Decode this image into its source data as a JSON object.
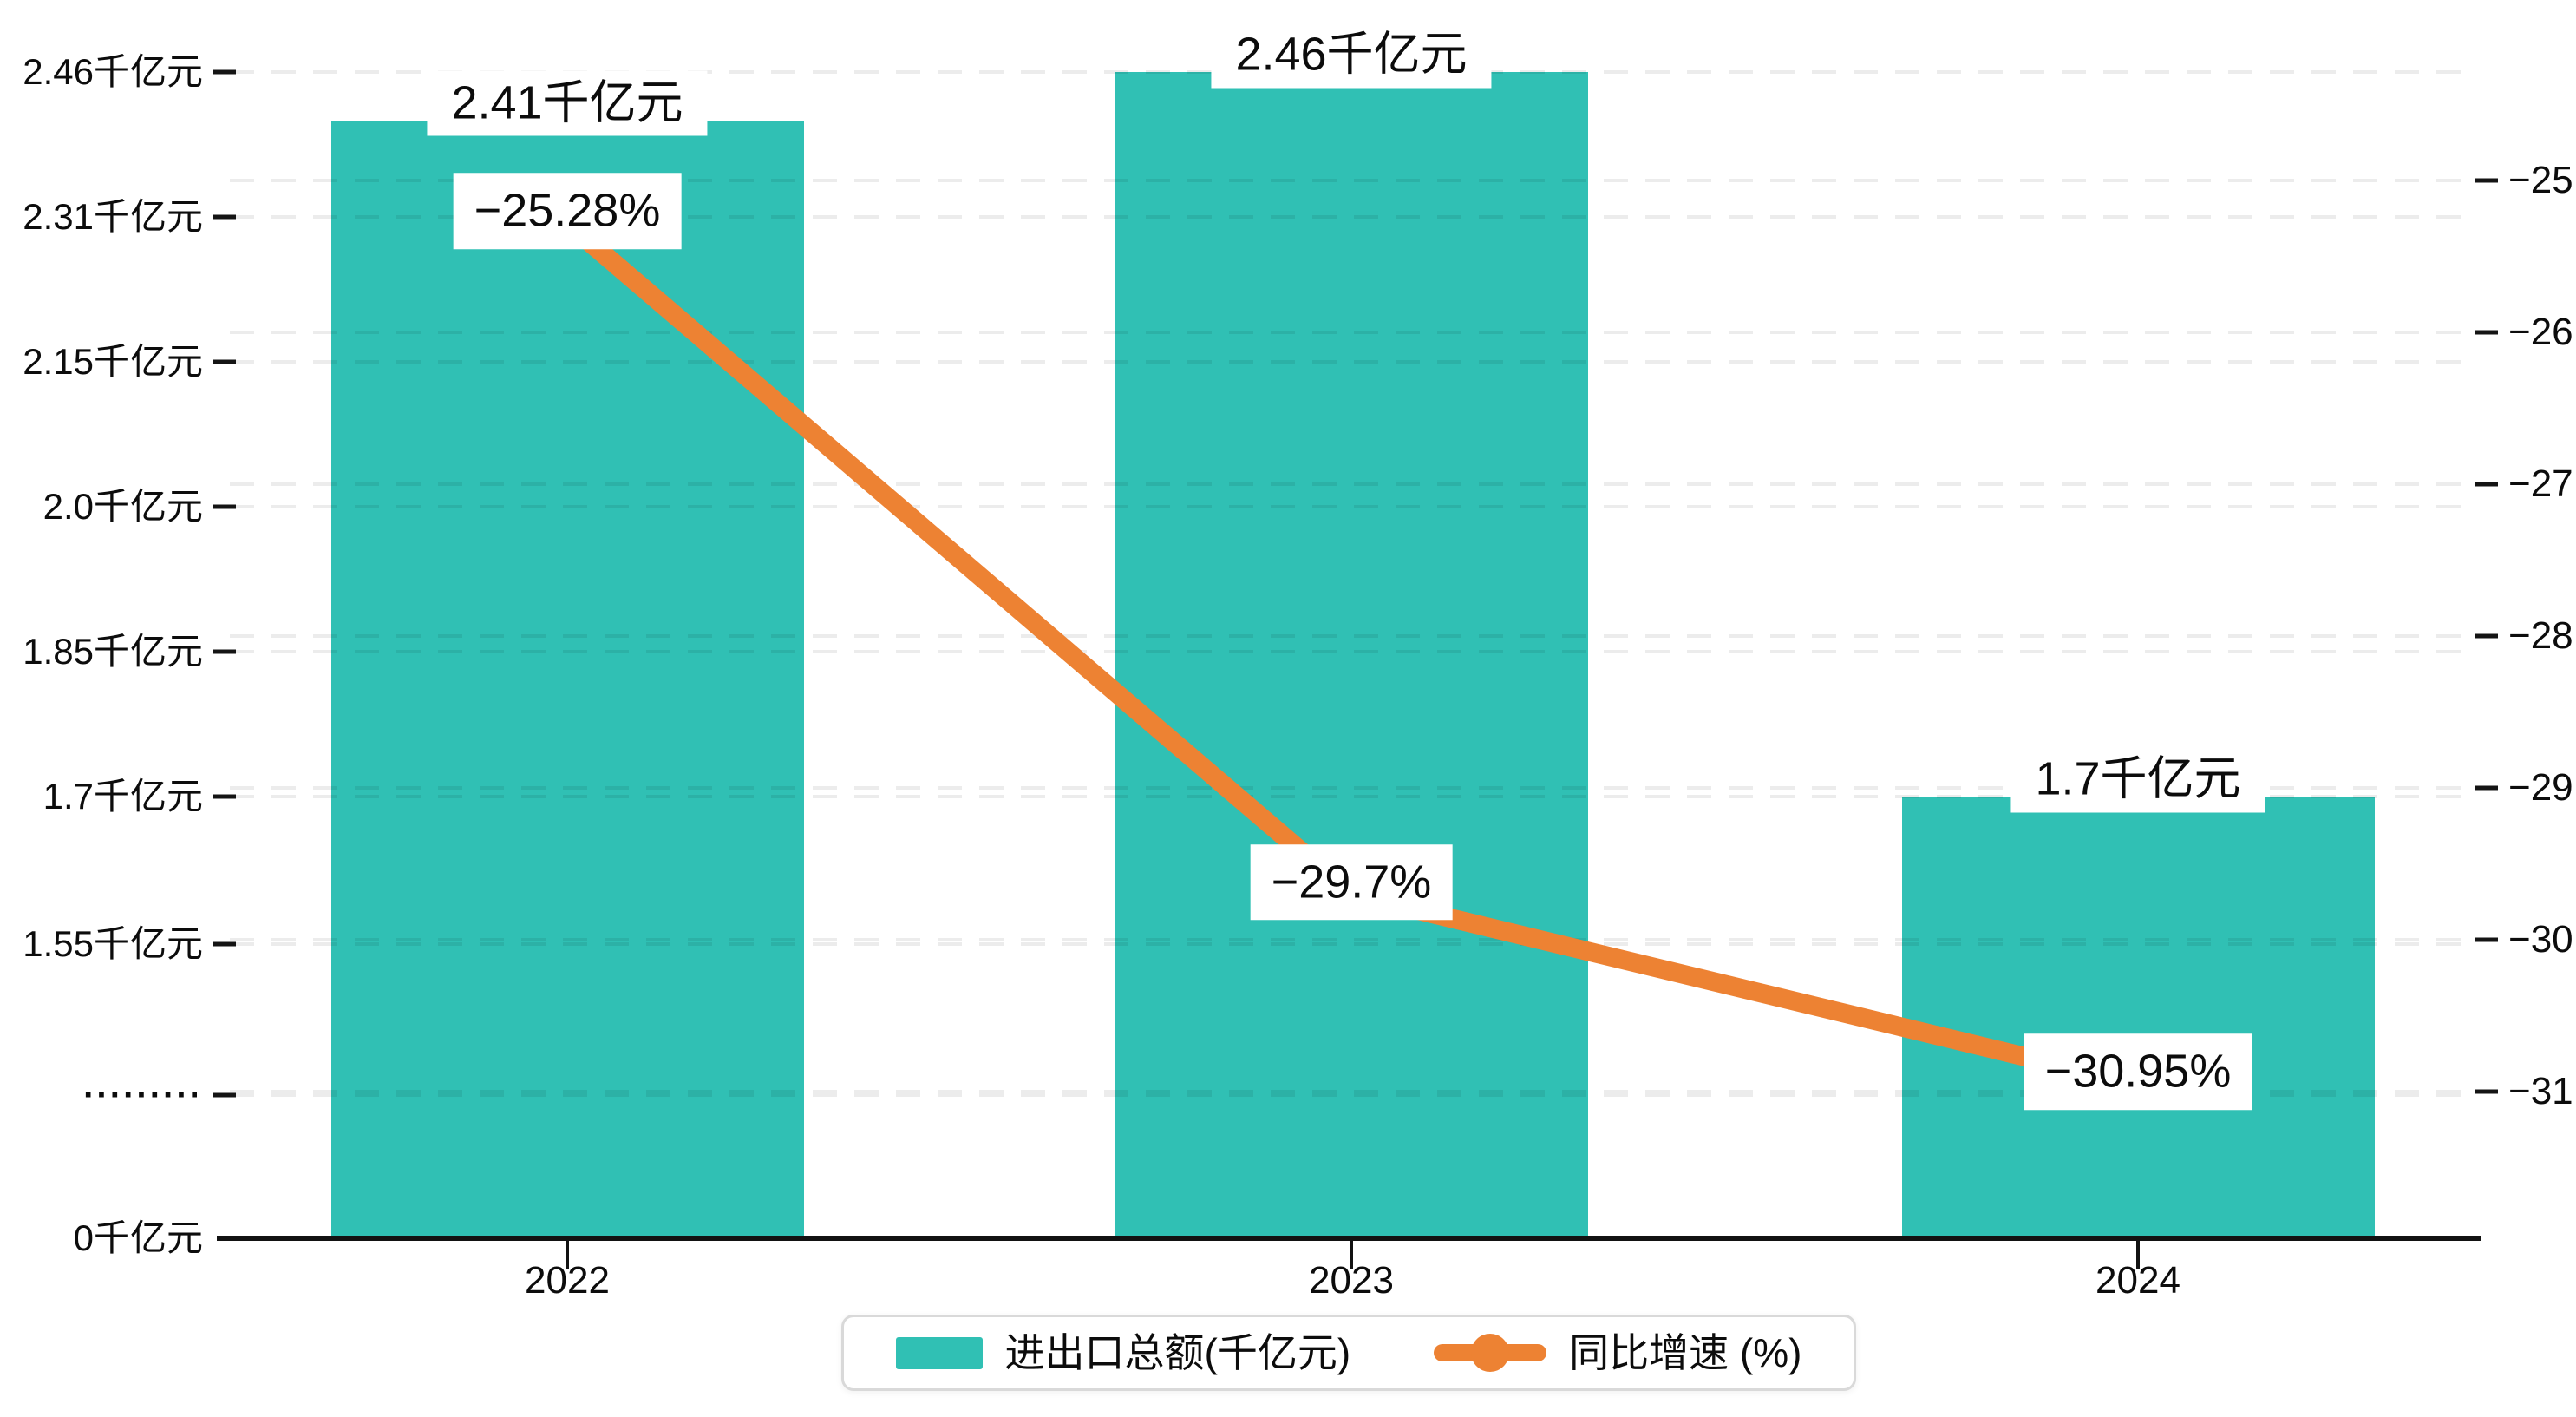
{
  "chart_data": {
    "type": "bar+line",
    "title": "",
    "categories": [
      "2022",
      "2023",
      "2024"
    ],
    "series": [
      {
        "name": "进出口总额(千亿元)",
        "type": "bar",
        "unit": "千亿元",
        "values": [
          2.41,
          2.46,
          1.7
        ],
        "data_labels": [
          "2.41千亿元",
          "2.46千亿元",
          "1.7千亿元"
        ],
        "color": "#30C0B4"
      },
      {
        "name": "同比增速 (%)",
        "type": "line",
        "unit": "%",
        "values": [
          -25.28,
          -29.7,
          -30.95
        ],
        "data_labels": [
          "−25.28%",
          "−29.7%",
          "−30.95%"
        ],
        "color": "#ED8233"
      }
    ],
    "left_axis": {
      "ticks": [
        "2.46千亿元",
        "2.31千亿元",
        "2.15千亿元",
        "2.0千亿元",
        "1.85千亿元",
        "1.7千亿元",
        "1.55千亿元",
        "·········",
        "0千亿元"
      ],
      "axis_break_marker": "·········"
    },
    "right_axis": {
      "ticks": [
        "−25",
        "−26",
        "−27",
        "−28",
        "−29",
        "−30",
        "−31"
      ],
      "range": [
        -31,
        -25
      ]
    },
    "legend": [
      {
        "label": "进出口总额(千亿元)",
        "marker": "square",
        "color": "#30C0B4"
      },
      {
        "label": "同比增速 (%)",
        "marker": "line-dot",
        "color": "#ED8233"
      }
    ],
    "grid": "dashed horizontal",
    "colors": {
      "bar": "#30C0B4",
      "line": "#ED8233",
      "axis": "#121212",
      "grid": "rgba(0,0,0,0.075)",
      "background": "#ffffff"
    }
  }
}
